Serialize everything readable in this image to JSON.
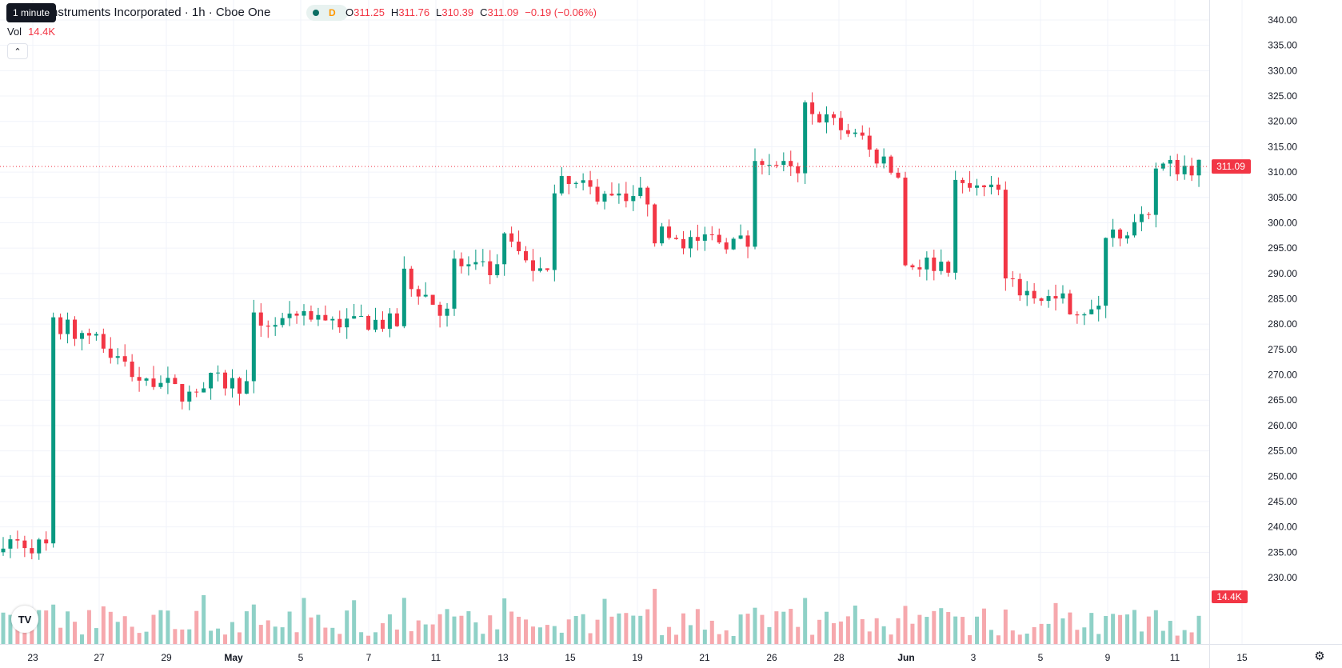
{
  "tooltip": "1 minute",
  "legend": {
    "title": "nstruments Incorporated · 1h · Cboe One",
    "session_letter": "D",
    "open_label": "O",
    "open": "311.25",
    "high_label": "H",
    "high": "311.76",
    "low_label": "L",
    "low": "310.39",
    "close_label": "C",
    "close": "311.09",
    "change": "−0.19 (−0.06%)",
    "volume_label": "Vol",
    "volume": "14.4K",
    "collapse_glyph": "⌃"
  },
  "logo_text": "TV",
  "icons": {
    "settings": "gear-icon",
    "collapse": "chevron-up-icon",
    "logo": "tradingview-logo"
  },
  "colors": {
    "up": "#089981",
    "down": "#f23645",
    "up_volume": "#8fd1c7",
    "down_volume": "#f6a8ad",
    "grid": "#f0f3fa"
  },
  "chart_data": {
    "type": "candlestick",
    "y_axis": {
      "range": [
        222,
        343
      ],
      "ticks": [
        "340.00",
        "335.00",
        "330.00",
        "325.00",
        "320.00",
        "315.00",
        "310.00",
        "305.00",
        "300.00",
        "295.00",
        "290.00",
        "285.00",
        "280.00",
        "275.00",
        "270.00",
        "265.00",
        "260.00",
        "255.00",
        "250.00",
        "245.00",
        "240.00",
        "235.00",
        "230.00"
      ]
    },
    "x_axis": {
      "ticks": [
        "23",
        "27",
        "29",
        "May",
        "5",
        "7",
        "11",
        "13",
        "15",
        "19",
        "21",
        "26",
        "28",
        "Jun",
        "3",
        "5",
        "9",
        "11",
        "15"
      ]
    },
    "last_price": "311.09",
    "last_price_value": 311.09,
    "last_volume": "14.4K",
    "daily_closes": [
      [
        238.0,
        236.0
      ],
      [
        280.0,
        278.0
      ],
      [
        277.0,
        268.0
      ],
      [
        270.0,
        265.0
      ],
      [
        269.0,
        268.0
      ],
      [
        281.0,
        280.0
      ],
      [
        283.0,
        280.0
      ],
      [
        281.0,
        280.0
      ],
      [
        291.0,
        282.0
      ],
      [
        292.0,
        290.0
      ],
      [
        298.0,
        289.0
      ],
      [
        308.0,
        306.0
      ],
      [
        307.0,
        305.0
      ],
      [
        298.0,
        296.0
      ],
      [
        297.0,
        296.0
      ],
      [
        315.0,
        309.0
      ],
      [
        323.0,
        318.0
      ],
      [
        318.0,
        309.0
      ],
      [
        292.0,
        292.0
      ],
      [
        307.0,
        306.0
      ],
      [
        288.0,
        285.0
      ],
      [
        285.0,
        282.0
      ],
      [
        298.0,
        300.0
      ],
      [
        311.0,
        311.09
      ]
    ],
    "volume_range": [
      0,
      1.0
    ]
  }
}
